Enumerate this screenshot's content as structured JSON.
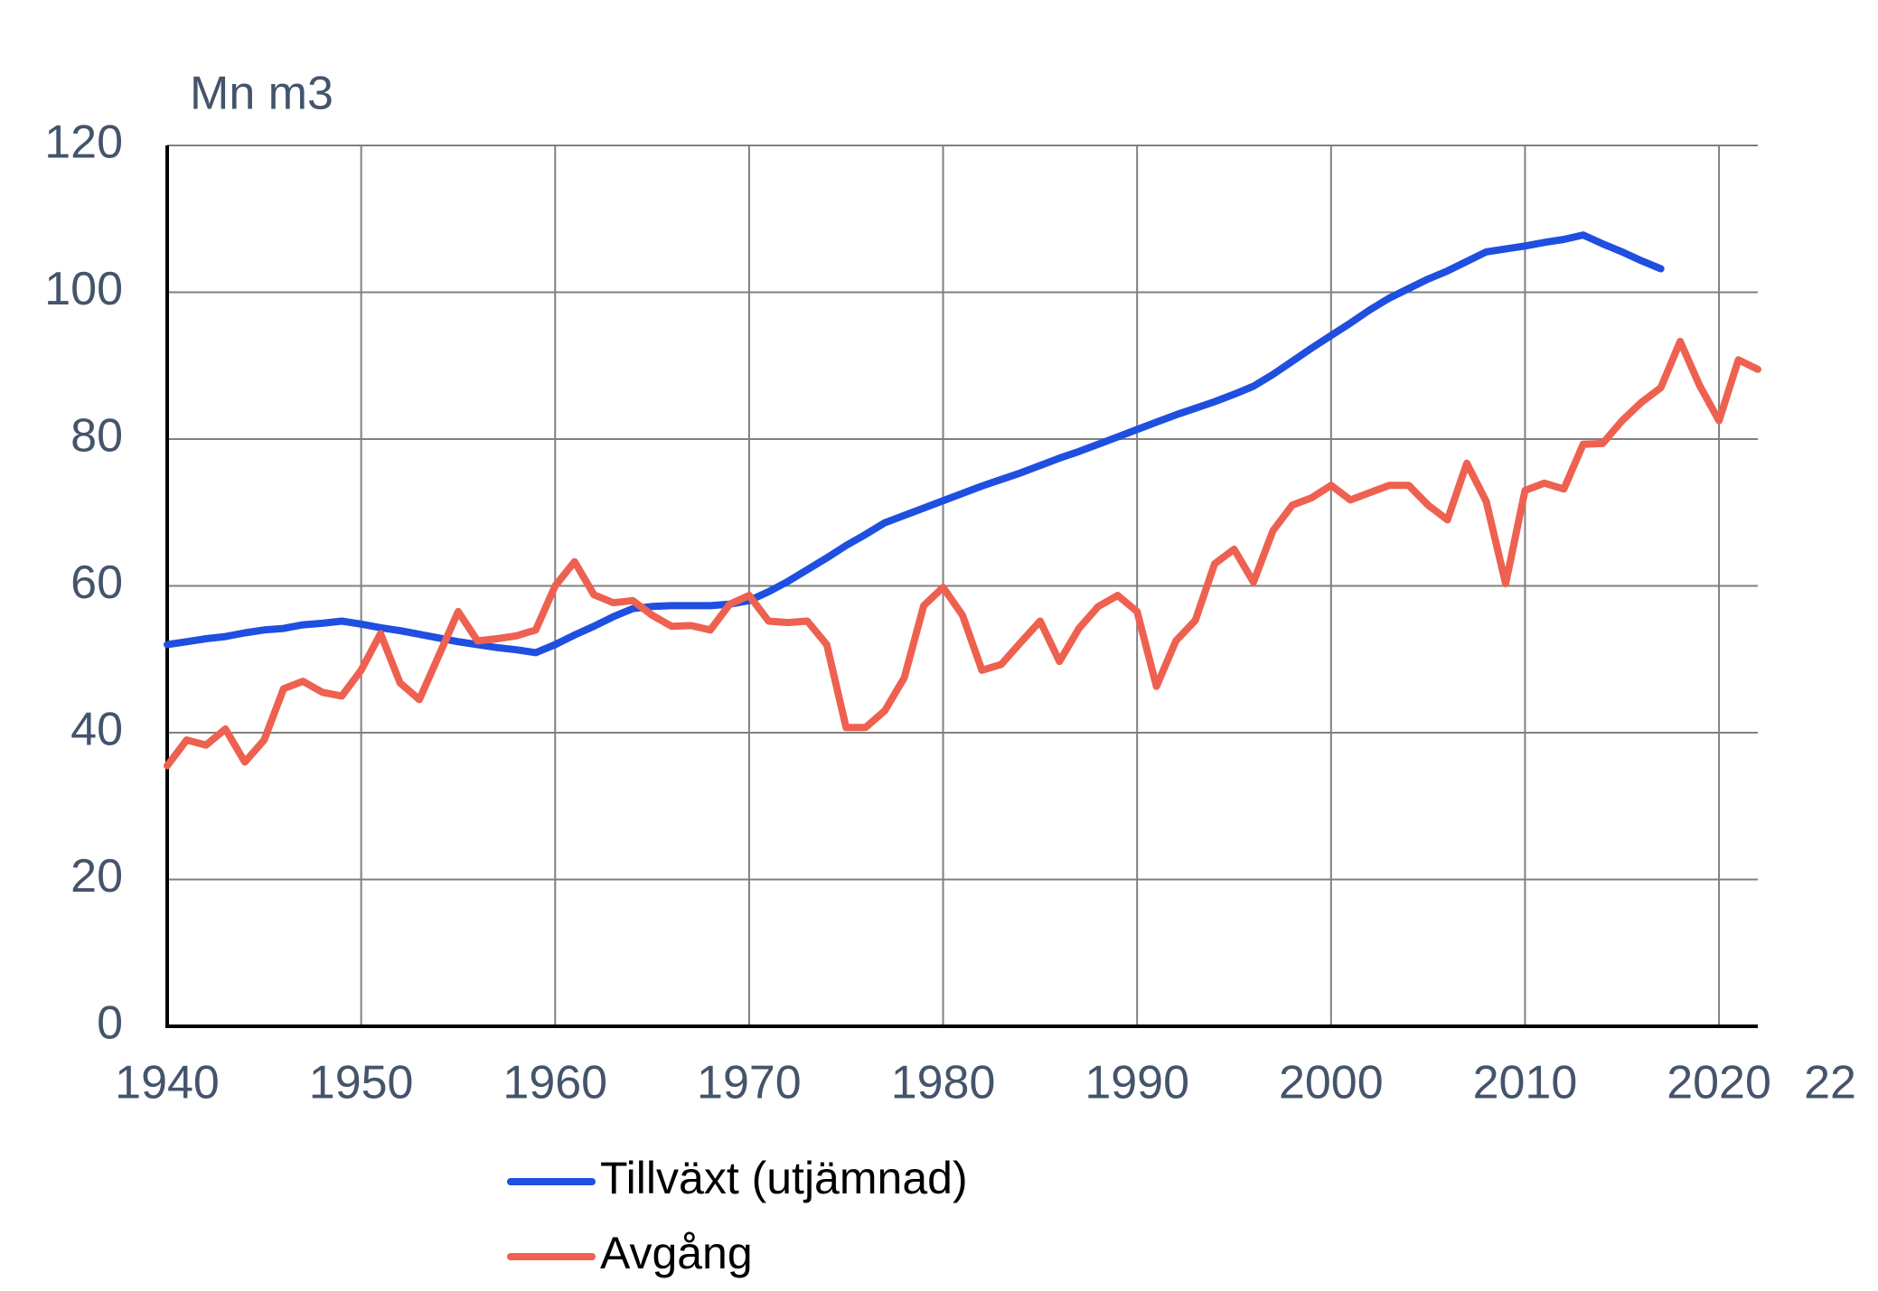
{
  "chart_data": {
    "type": "line",
    "y_label": "Mn m3",
    "x": [
      1940,
      1941,
      1942,
      1943,
      1944,
      1945,
      1946,
      1947,
      1948,
      1949,
      1950,
      1951,
      1952,
      1953,
      1954,
      1955,
      1956,
      1957,
      1958,
      1959,
      1960,
      1961,
      1962,
      1963,
      1964,
      1965,
      1966,
      1967,
      1968,
      1969,
      1970,
      1971,
      1972,
      1973,
      1974,
      1975,
      1976,
      1977,
      1978,
      1979,
      1980,
      1981,
      1982,
      1983,
      1984,
      1985,
      1986,
      1987,
      1988,
      1989,
      1990,
      1991,
      1992,
      1993,
      1994,
      1995,
      1996,
      1997,
      1998,
      1999,
      2000,
      2001,
      2002,
      2003,
      2004,
      2005,
      2006,
      2007,
      2008,
      2009,
      2010,
      2011,
      2012,
      2013,
      2014,
      2015,
      2016,
      2017,
      2018,
      2019,
      2020,
      2021,
      2022
    ],
    "series": [
      {
        "name": "Tillväxt (utjämnad)",
        "color": "#1f4fe0",
        "values": [
          52,
          52.4,
          52.8,
          53.1,
          53.6,
          54.0,
          54.2,
          54.7,
          54.9,
          55.2,
          54.8,
          54.3,
          53.9,
          53.4,
          52.9,
          52.4,
          52.0,
          51.6,
          51.3,
          50.9,
          52.0,
          53.3,
          54.5,
          55.8,
          56.9,
          57.2,
          57.3,
          57.3,
          57.3,
          57.5,
          58.0,
          59.2,
          60.6,
          62.2,
          63.8,
          65.5,
          67.0,
          68.6,
          69.6,
          70.6,
          71.6,
          72.6,
          73.6,
          74.5,
          75.4,
          76.4,
          77.4,
          78.3,
          79.3,
          80.3,
          81.3,
          82.3,
          83.3,
          84.2,
          85.1,
          86.1,
          87.2,
          88.8,
          90.6,
          92.4,
          94.1,
          95.8,
          97.6,
          99.2,
          100.5,
          101.8,
          102.9,
          104.2,
          105.5,
          105.9,
          106.3,
          106.8,
          107.2,
          107.8,
          106.6,
          105.5,
          104.3,
          103.2,
          null,
          null,
          null,
          null,
          null
        ]
      },
      {
        "name": "Avgång",
        "color": "#ee6150",
        "values": [
          35.5,
          39,
          38.3,
          40.5,
          36,
          39,
          46,
          47,
          45.5,
          45,
          48.5,
          53.5,
          46.8,
          44.5,
          50.5,
          56.5,
          52.5,
          52.8,
          53.2,
          54,
          60,
          63.3,
          58.8,
          57.7,
          58,
          56,
          54.5,
          54.6,
          54,
          57.5,
          58.7,
          55.2,
          55,
          55.2,
          52,
          40.7,
          40.7,
          43,
          47.5,
          57.3,
          59.8,
          56,
          48.5,
          49.3,
          52.3,
          55.2,
          49.7,
          54.2,
          57.2,
          58.7,
          56.5,
          46.3,
          52.5,
          55.3,
          63,
          65,
          60.5,
          67.5,
          71,
          72,
          73.7,
          71.7,
          72.7,
          73.7,
          73.7,
          71,
          69,
          76.7,
          71.5,
          60.3,
          73,
          74,
          73.2,
          79.3,
          79.4,
          82.5,
          85,
          87,
          93.3,
          87.3,
          82.5,
          90.8,
          89.5
        ]
      }
    ],
    "xlim": [
      1940,
      2022
    ],
    "xticks": [
      1940,
      1950,
      1960,
      1970,
      1980,
      1990,
      2000,
      2010,
      2020,
      {
        "value": 2022,
        "label": "22"
      }
    ],
    "ylim": [
      0,
      120
    ],
    "yticks": [
      0,
      20,
      40,
      60,
      80,
      100,
      120
    ],
    "grid": true
  }
}
